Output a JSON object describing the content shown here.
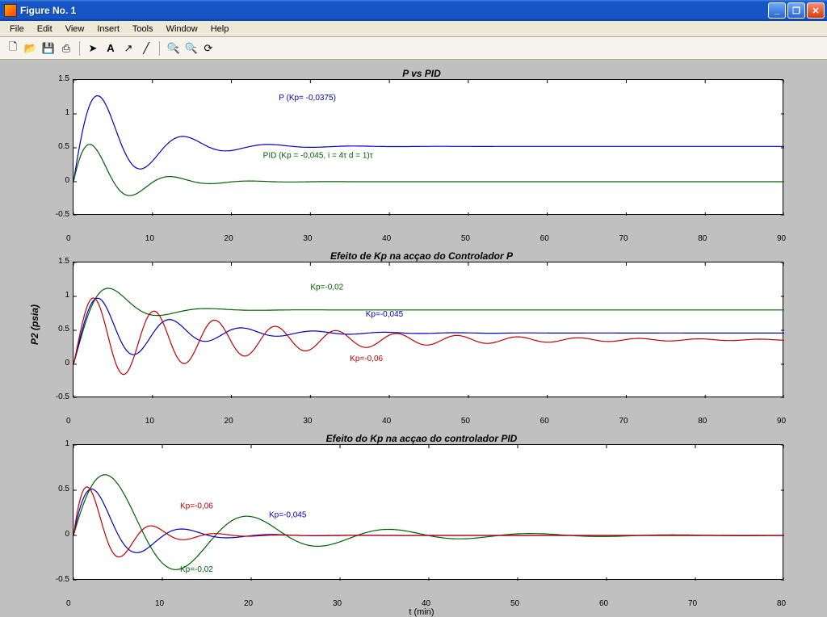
{
  "window": {
    "title": "Figure No. 1"
  },
  "menubar": {
    "items": [
      "File",
      "Edit",
      "View",
      "Insert",
      "Tools",
      "Window",
      "Help"
    ]
  },
  "toolbar": {
    "icons": [
      "new",
      "open",
      "save",
      "print",
      "sep",
      "pointer",
      "text",
      "arrow",
      "line",
      "sep",
      "zoom-in",
      "zoom-out",
      "rotate"
    ]
  },
  "figure": {
    "background_color": "#c0c0c0",
    "ylabel": "P2 (psia)",
    "xlabel": "t (min)",
    "subplots": [
      {
        "title": "P vs PID",
        "xlim": [
          0,
          90
        ],
        "xtick_step": 10,
        "ylim": [
          -0.5,
          1.5
        ],
        "ytick_step": 0.5,
        "plot_bg": "#ffffff",
        "series": [
          {
            "label": "P (Kp= -0,0375)",
            "color": "#0000c0",
            "label_x": 26,
            "label_y": 1.2,
            "equation": {
              "type": "step_underdamped",
              "K": 0.5,
              "overshoot": 1.1,
              "zeta": 0.25,
              "omega": 0.6,
              "steady": 0.52
            }
          },
          {
            "label": "PID (Kp = -0,045,   i = 4τ d = 1)τ",
            "color": "#006000",
            "label_x": 24,
            "label_y": 0.35,
            "equation": {
              "type": "step_underdamped",
              "K": 0.0,
              "overshoot": 0.86,
              "zeta": 0.3,
              "omega": 0.65,
              "steady": 0.0
            }
          }
        ]
      },
      {
        "title": "Efeito de Kp na acçao do Controlador P",
        "xlim": [
          0,
          90
        ],
        "xtick_step": 10,
        "ylim": [
          -0.5,
          1.5
        ],
        "ytick_step": 0.5,
        "plot_bg": "#ffffff",
        "series": [
          {
            "label": "Kp=-0,02",
            "color": "#006000",
            "label_x": 30,
            "label_y": 1.1,
            "equation": {
              "type": "step_underdamped",
              "K": 0.8,
              "overshoot": 0.45,
              "zeta": 0.4,
              "omega": 0.55,
              "steady": 0.8
            }
          },
          {
            "label": "Kp=-0,045",
            "color": "#0000c0",
            "label_x": 37,
            "label_y": 0.7,
            "equation": {
              "type": "step_underdamped",
              "K": 0.46,
              "overshoot": 0.55,
              "zeta": 0.15,
              "omega": 0.7,
              "steady": 0.46
            }
          },
          {
            "label": "Kp=-0,06",
            "color": "#c00000",
            "label_x": 35,
            "label_y": 0.05,
            "equation": {
              "type": "step_underdamped",
              "K": 0.36,
              "overshoot": 0.6,
              "zeta": 0.06,
              "omega": 0.82,
              "steady": 0.36
            }
          }
        ]
      },
      {
        "title": "Efeito do Kp na acçao do controlador PID",
        "xlim": [
          0,
          80
        ],
        "xtick_step": 10,
        "ylim": [
          -0.5,
          1.0
        ],
        "ytick_step": 0.5,
        "plot_bg": "#ffffff",
        "series": [
          {
            "label": "Kp=-0,02",
            "color": "#006000",
            "label_x": 12,
            "label_y": -0.4,
            "equation": {
              "type": "step_underdamped",
              "K": 0.0,
              "overshoot": 0.88,
              "zeta": 0.18,
              "omega": 0.4,
              "steady": 0.0
            }
          },
          {
            "label": "Kp=-0,045",
            "color": "#0000c0",
            "label_x": 22,
            "label_y": 0.2,
            "equation": {
              "type": "step_underdamped",
              "K": 0.0,
              "overshoot": 0.8,
              "zeta": 0.3,
              "omega": 0.65,
              "steady": 0.0
            }
          },
          {
            "label": "Kp=-0,06",
            "color": "#c00000",
            "label_x": 12,
            "label_y": 0.3,
            "equation": {
              "type": "step_underdamped",
              "K": 0.0,
              "overshoot": 0.78,
              "zeta": 0.25,
              "omega": 0.9,
              "steady": 0.0
            }
          }
        ]
      }
    ]
  }
}
